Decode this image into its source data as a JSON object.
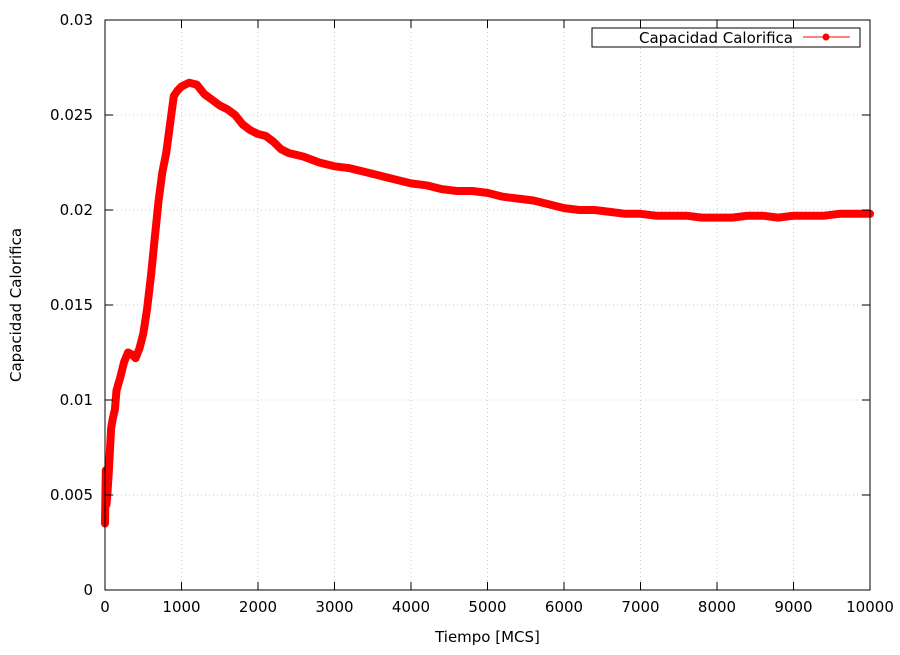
{
  "chart_data": {
    "type": "line",
    "title": "",
    "xlabel": "Tiempo [MCS]",
    "ylabel": "Capacidad Calorifica",
    "xlim": [
      0,
      10000
    ],
    "ylim": [
      0,
      0.03
    ],
    "x_ticks": [
      0,
      1000,
      2000,
      3000,
      4000,
      5000,
      6000,
      7000,
      8000,
      9000,
      10000
    ],
    "y_ticks": [
      0,
      0.005,
      0.01,
      0.015,
      0.02,
      0.025,
      0.03
    ],
    "x_tick_labels": [
      "0",
      "1000",
      "2000",
      "3000",
      "4000",
      "5000",
      "6000",
      "7000",
      "8000",
      "9000",
      "10000"
    ],
    "y_tick_labels": [
      "0",
      "0.005",
      "0.01",
      "0.015",
      "0.02",
      "0.025",
      "0.03"
    ],
    "grid": true,
    "legend_position": "top-right",
    "series": [
      {
        "name": "Capacidad Calorifica",
        "color": "#ff0000",
        "marker": "circle",
        "points": [
          [
            0,
            0.0035
          ],
          [
            10,
            0.0063
          ],
          [
            20,
            0.0045
          ],
          [
            30,
            0.005
          ],
          [
            50,
            0.0062
          ],
          [
            80,
            0.0085
          ],
          [
            100,
            0.009
          ],
          [
            130,
            0.0095
          ],
          [
            150,
            0.0105
          ],
          [
            200,
            0.0112
          ],
          [
            250,
            0.012
          ],
          [
            300,
            0.0125
          ],
          [
            350,
            0.0124
          ],
          [
            400,
            0.0122
          ],
          [
            450,
            0.0127
          ],
          [
            500,
            0.0135
          ],
          [
            550,
            0.0148
          ],
          [
            600,
            0.0165
          ],
          [
            650,
            0.0185
          ],
          [
            700,
            0.0205
          ],
          [
            750,
            0.022
          ],
          [
            800,
            0.023
          ],
          [
            850,
            0.0245
          ],
          [
            900,
            0.026
          ],
          [
            950,
            0.0263
          ],
          [
            1000,
            0.0265
          ],
          [
            1050,
            0.0266
          ],
          [
            1100,
            0.0267
          ],
          [
            1200,
            0.0266
          ],
          [
            1300,
            0.0261
          ],
          [
            1400,
            0.0258
          ],
          [
            1500,
            0.0255
          ],
          [
            1600,
            0.0253
          ],
          [
            1700,
            0.025
          ],
          [
            1800,
            0.0245
          ],
          [
            1900,
            0.0242
          ],
          [
            2000,
            0.024
          ],
          [
            2100,
            0.0239
          ],
          [
            2200,
            0.0236
          ],
          [
            2300,
            0.0232
          ],
          [
            2400,
            0.023
          ],
          [
            2500,
            0.0229
          ],
          [
            2600,
            0.0228
          ],
          [
            2800,
            0.0225
          ],
          [
            3000,
            0.0223
          ],
          [
            3200,
            0.0222
          ],
          [
            3400,
            0.022
          ],
          [
            3600,
            0.0218
          ],
          [
            3800,
            0.0216
          ],
          [
            4000,
            0.0214
          ],
          [
            4200,
            0.0213
          ],
          [
            4400,
            0.0211
          ],
          [
            4600,
            0.021
          ],
          [
            4800,
            0.021
          ],
          [
            5000,
            0.0209
          ],
          [
            5200,
            0.0207
          ],
          [
            5400,
            0.0206
          ],
          [
            5600,
            0.0205
          ],
          [
            5800,
            0.0203
          ],
          [
            6000,
            0.0201
          ],
          [
            6200,
            0.02
          ],
          [
            6400,
            0.02
          ],
          [
            6600,
            0.0199
          ],
          [
            6800,
            0.0198
          ],
          [
            7000,
            0.0198
          ],
          [
            7200,
            0.0197
          ],
          [
            7400,
            0.0197
          ],
          [
            7600,
            0.0197
          ],
          [
            7800,
            0.0196
          ],
          [
            8000,
            0.0196
          ],
          [
            8200,
            0.0196
          ],
          [
            8400,
            0.0197
          ],
          [
            8600,
            0.0197
          ],
          [
            8800,
            0.0196
          ],
          [
            9000,
            0.0197
          ],
          [
            9200,
            0.0197
          ],
          [
            9400,
            0.0197
          ],
          [
            9600,
            0.0198
          ],
          [
            9800,
            0.0198
          ],
          [
            10000,
            0.0198
          ]
        ]
      }
    ]
  }
}
